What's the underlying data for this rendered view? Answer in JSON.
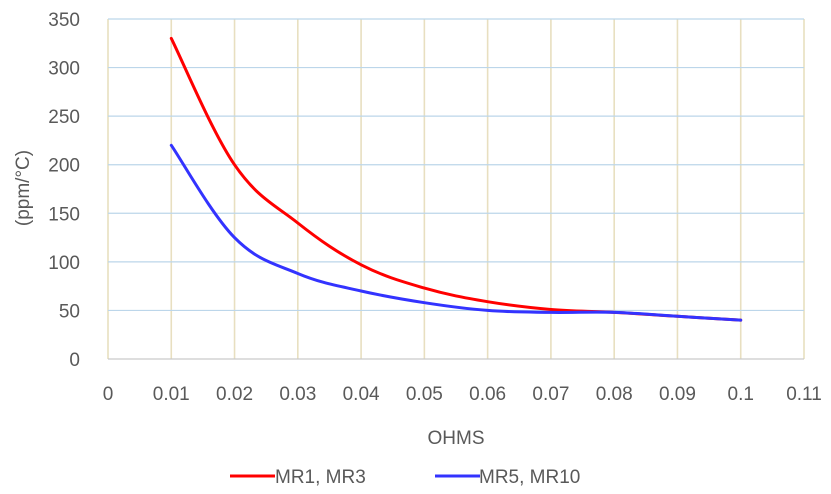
{
  "chart_data": {
    "type": "line",
    "title": "",
    "xlabel": "OHMS",
    "ylabel": "(ppm/°C)",
    "xlim": [
      0,
      0.11
    ],
    "ylim": [
      0,
      350
    ],
    "x_ticks": [
      "0",
      "0.01",
      "0.02",
      "0.03",
      "0.04",
      "0.05",
      "0.06",
      "0.07",
      "0.08",
      "0.09",
      "0.1",
      "0.11"
    ],
    "y_ticks": [
      "0",
      "50",
      "100",
      "150",
      "200",
      "250",
      "300",
      "350"
    ],
    "grid": true,
    "legend_position": "bottom",
    "series": [
      {
        "name": "MR1, MR3",
        "color": "#ff0000",
        "x": [
          0.01,
          0.02,
          0.03,
          0.04,
          0.05,
          0.06,
          0.07,
          0.08,
          0.09,
          0.1
        ],
        "y": [
          330,
          200,
          140,
          97,
          73,
          59,
          51,
          48,
          44,
          40
        ]
      },
      {
        "name": "MR5, MR10",
        "color": "#3333ff",
        "x": [
          0.01,
          0.02,
          0.03,
          0.04,
          0.05,
          0.06,
          0.07,
          0.08,
          0.09,
          0.1
        ],
        "y": [
          220,
          125,
          88,
          70,
          58,
          50,
          48,
          48,
          44,
          40
        ]
      }
    ]
  }
}
